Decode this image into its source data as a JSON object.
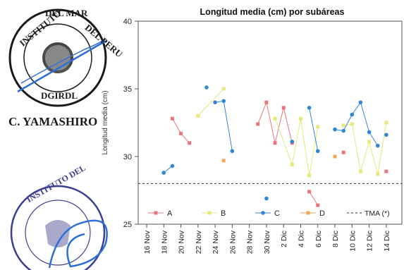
{
  "stamps": [
    {
      "name": "seal-top",
      "text": "INSTITUTO DEL MAR DEL PERU · DGIRDL",
      "color": "#1a1a1a"
    },
    {
      "name": "seal-bottom",
      "text": "INSTITUTO DEL MAR DEL PERU",
      "color": "#3b3f8f"
    }
  ],
  "signature_name": "C. YAMASHIRO",
  "colors": {
    "A": "#e8767a",
    "B": "#e6e87a",
    "C": "#2e86d6",
    "D": "#f2a65a",
    "tma": "#333333",
    "signature_ink": "#2b6fd6"
  },
  "chart_data": {
    "type": "line",
    "title": "Longitud media (cm) por subáreas",
    "ylabel": "Longitud media (cm)",
    "xlabel": "",
    "ylim": [
      25,
      40
    ],
    "yticks": [
      25,
      30,
      35,
      40
    ],
    "xticks": [
      "16 Nov",
      "18 Nov",
      "20 Nov",
      "22 Nov",
      "24 Nov",
      "26 Nov",
      "28 Nov",
      "30 Nov",
      "2 Dic",
      "4 Dic",
      "6 Dic",
      "8 Dic",
      "10 Dic",
      "12 Dic",
      "14 Dic"
    ],
    "x_range": [
      "16 Nov",
      "15 Dic"
    ],
    "grid": false,
    "legend_position": "bottom",
    "reference_line": {
      "name": "TMA (*)",
      "y": 28,
      "style": "dashed"
    },
    "series": [
      {
        "name": "A",
        "points": [
          [
            "19 Nov",
            32.8
          ],
          [
            "20 Nov",
            31.7
          ],
          [
            "21 Nov",
            31.0
          ],
          null,
          [
            "29 Nov",
            32.4
          ],
          [
            "30 Nov",
            34.0
          ],
          [
            "1 Dic",
            31.0
          ],
          [
            "2 Dic",
            33.6
          ],
          [
            "3 Dic",
            31.0
          ],
          null,
          [
            "5 Dic",
            27.4
          ],
          [
            "6 Dic",
            26.4
          ],
          null,
          [
            "9 Dic",
            30.3
          ],
          null,
          [
            "14 Dic",
            28.9
          ]
        ]
      },
      {
        "name": "B",
        "points": [
          [
            "22 Nov",
            33.0
          ],
          [
            "25 Nov",
            35.0
          ],
          null,
          [
            "1 Dic",
            32.8
          ],
          [
            "3 Dic",
            29.4
          ],
          [
            "4 Dic",
            32.8
          ],
          [
            "5 Dic",
            28.6
          ],
          [
            "6 Dic",
            32.2
          ],
          null,
          [
            "9 Dic",
            32.3
          ],
          [
            "10 Dic",
            32.4
          ],
          [
            "11 Dic",
            28.9
          ],
          [
            "12 Dic",
            31.1
          ],
          [
            "13 Dic",
            28.7
          ],
          [
            "14 Dic",
            32.5
          ]
        ]
      },
      {
        "name": "C",
        "points": [
          [
            "18 Nov",
            28.8
          ],
          [
            "19 Nov",
            29.3
          ],
          null,
          [
            "23 Nov",
            35.1
          ],
          null,
          [
            "24 Nov",
            34.0
          ],
          [
            "25 Nov",
            34.1
          ],
          [
            "26 Nov",
            30.4
          ],
          null,
          [
            "30 Nov",
            26.9
          ],
          null,
          [
            "3 Dic",
            31.1
          ],
          null,
          [
            "5 Dic",
            33.6
          ],
          [
            "6 Dic",
            30.4
          ],
          null,
          [
            "8 Dic",
            32.0
          ],
          [
            "9 Dic",
            31.9
          ],
          [
            "10 Dic",
            33.1
          ],
          [
            "11 Dic",
            34.0
          ],
          [
            "12 Dic",
            31.8
          ],
          [
            "13 Dic",
            30.8
          ],
          null,
          [
            "14 Dic",
            31.6
          ]
        ]
      },
      {
        "name": "D",
        "points": [
          [
            "25 Nov",
            29.7
          ],
          null,
          [
            "8 Dic",
            30.0
          ]
        ]
      }
    ]
  }
}
